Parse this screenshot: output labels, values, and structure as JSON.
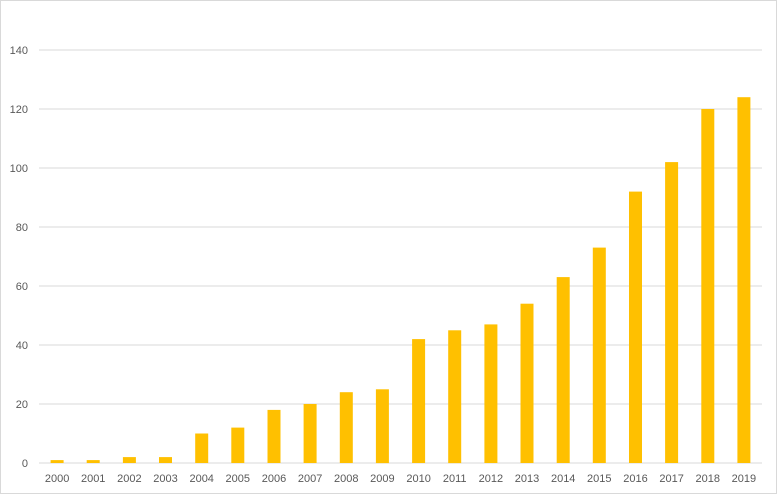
{
  "chart_data": {
    "type": "bar",
    "title": "",
    "xlabel": "",
    "ylabel": "",
    "categories": [
      "2000",
      "2001",
      "2002",
      "2003",
      "2004",
      "2005",
      "2006",
      "2007",
      "2008",
      "2009",
      "2010",
      "2011",
      "2012",
      "2013",
      "2014",
      "2015",
      "2016",
      "2017",
      "2018",
      "2019"
    ],
    "values": [
      1,
      1,
      2,
      2,
      10,
      12,
      18,
      20,
      24,
      25,
      42,
      45,
      47,
      54,
      63,
      73,
      92,
      102,
      120,
      124
    ],
    "ylim": [
      0,
      140
    ],
    "yticks": [
      "0",
      "20",
      "40",
      "60",
      "80",
      "100",
      "120",
      "140"
    ],
    "grid": "horizontal",
    "legend": "none",
    "bar_color": "#FFC000",
    "grid_color": "#d9d9d9",
    "tick_color": "#595959"
  }
}
